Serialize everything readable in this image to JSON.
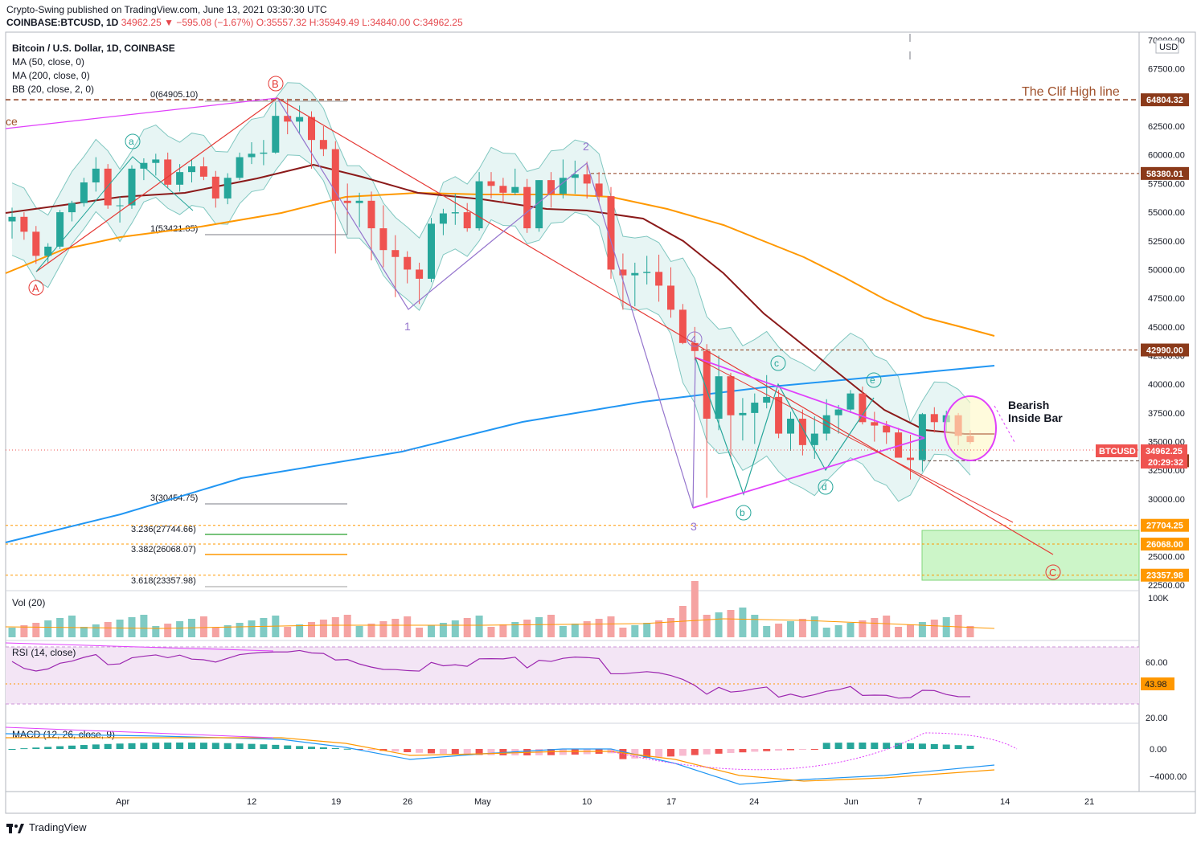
{
  "header": {
    "publish_line": "Crypto-Swing published on TradingView.com, June 13, 2021 03:30:30 UTC",
    "symbol": "COINBASE:BTCUSD, 1D",
    "last": "34962.25",
    "change": "▼ −595.08 (−1.67%)",
    "o": "O:35557.32",
    "h": "H:35949.49",
    "l": "L:34840.00",
    "c": "C:34962.25"
  },
  "legend": {
    "title": "Bitcoin / U.S. Dollar, 1D, COINBASE",
    "ma50": "MA (50, close, 0)",
    "ma200": "MA (200, close, 0)",
    "bb": "BB (20, close, 2, 0)"
  },
  "panes": {
    "vol": "Vol (20)",
    "rsi": "RSI (14, close)",
    "macd": "MACD (12, 26, close, 9)"
  },
  "annotations": {
    "clif_high": "The Clif High line",
    "bearish": "Bearish",
    "inside_bar": "Inside Bar",
    "left_cut": "ce"
  },
  "footer": {
    "brand": "TradingView"
  },
  "colors": {
    "up": "#26a69a",
    "down": "#ef5350",
    "ma50": "#8b1a1a",
    "ma200": "#ff9800",
    "ma_blue": "#2196f3",
    "bb": "#80c7c0",
    "level": "#8b3a1a",
    "fib_green": "#4caf50",
    "fib_orange": "#ff9800",
    "magenta": "#e040fb",
    "purple": "#9575cd",
    "red_line": "#e53935"
  },
  "chart_data": {
    "type": "candlestick",
    "title": "Bitcoin / U.S. Dollar, 1D, COINBASE",
    "yaxis_ticks": [
      "70000.00",
      "67500.00",
      "65000.00",
      "62500.00",
      "60000.00",
      "57500.00",
      "55000.00",
      "52500.00",
      "50000.00",
      "47500.00",
      "45000.00",
      "42500.00",
      "40000.00",
      "37500.00",
      "35000.00",
      "32500.00",
      "30000.00",
      "27500.00",
      "25000.00",
      "22500.00"
    ],
    "ylim": [
      22357.98,
      70000
    ],
    "xaxis_ticks": [
      "Apr",
      "12",
      "19",
      "26",
      "May",
      "10",
      "17",
      "24",
      "Jun",
      "7",
      "14",
      "21"
    ],
    "currency": "USD",
    "last_price_label": "BTCUSD",
    "last_price": "34962.25",
    "countdown": "20:29:32",
    "levels": [
      {
        "label": "64804.32",
        "value": 64804.32
      },
      {
        "label": "58380.01",
        "value": 58380.01
      },
      {
        "label": "42990.00",
        "value": 42990.0
      },
      {
        "label": "33333.00",
        "value": 33333.0
      },
      {
        "label": "27704.25",
        "value": 27704.25
      },
      {
        "label": "26068.00",
        "value": 26068.0
      },
      {
        "label": "23357.98",
        "value": 23357.98
      }
    ],
    "fib_labels": [
      {
        "label": "0(64905.10)",
        "value": 64905.1
      },
      {
        "label": "1(53421.85)",
        "value": 53421.85
      },
      {
        "label": "3(30454.75)",
        "value": 30454.75
      },
      {
        "label": "3.236(27744.66)",
        "value": 27744.66
      },
      {
        "label": "3.382(26068.07)",
        "value": 26068.07
      },
      {
        "label": "3.618(23357.98)",
        "value": 23357.98
      }
    ],
    "wave_labels": [
      "A",
      "B",
      "C",
      "1",
      "2",
      "3",
      "4",
      "a",
      "b",
      "c",
      "d",
      "e"
    ],
    "candles": [
      [
        54200,
        55400,
        52700,
        54600
      ],
      [
        54600,
        55000,
        52600,
        53300
      ],
      [
        53300,
        53800,
        50500,
        51200
      ],
      [
        51200,
        52300,
        50600,
        52000
      ],
      [
        52000,
        55200,
        51800,
        55000
      ],
      [
        55000,
        56000,
        54200,
        55800
      ],
      [
        55800,
        58000,
        55500,
        57600
      ],
      [
        57600,
        59800,
        56800,
        58800
      ],
      [
        58800,
        59200,
        55300,
        55600
      ],
      [
        55600,
        56400,
        54100,
        55600
      ],
      [
        55600,
        59100,
        55300,
        58800
      ],
      [
        58800,
        59700,
        57800,
        59300
      ],
      [
        59300,
        60100,
        58200,
        59600
      ],
      [
        59600,
        60200,
        57100,
        57400
      ],
      [
        57400,
        59200,
        56800,
        58500
      ],
      [
        58500,
        59600,
        57600,
        59000
      ],
      [
        59000,
        59800,
        57800,
        58100
      ],
      [
        58100,
        58600,
        55400,
        56200
      ],
      [
        56200,
        58400,
        55700,
        58000
      ],
      [
        58000,
        60200,
        57800,
        59800
      ],
      [
        59800,
        61100,
        59200,
        60100
      ],
      [
        60100,
        61300,
        59100,
        60200
      ],
      [
        60200,
        64600,
        60100,
        63400
      ],
      [
        63400,
        64900,
        61800,
        62900
      ],
      [
        62900,
        64300,
        61900,
        63300
      ],
      [
        63300,
        63800,
        58800,
        61300
      ],
      [
        61300,
        62500,
        59900,
        60500
      ],
      [
        60500,
        61200,
        51400,
        56000
      ],
      [
        56000,
        57500,
        54800,
        55800
      ],
      [
        55800,
        56700,
        53700,
        56000
      ],
      [
        56000,
        56800,
        50800,
        53600
      ],
      [
        53600,
        55600,
        50200,
        51700
      ],
      [
        51700,
        53000,
        47600,
        51100
      ],
      [
        51100,
        51600,
        48800,
        50000
      ],
      [
        50000,
        50600,
        47000,
        49200
      ],
      [
        49200,
        54500,
        48900,
        54000
      ],
      [
        54000,
        55300,
        53000,
        54900
      ],
      [
        54900,
        56600,
        53900,
        55000
      ],
      [
        55000,
        55800,
        53300,
        53600
      ],
      [
        53600,
        58500,
        53400,
        57700
      ],
      [
        57700,
        58500,
        56200,
        57300
      ],
      [
        57300,
        58000,
        55800,
        56700
      ],
      [
        56700,
        58800,
        56500,
        57200
      ],
      [
        57200,
        57900,
        53200,
        53600
      ],
      [
        53600,
        57800,
        53300,
        57800
      ],
      [
        57800,
        58500,
        55400,
        56600
      ],
      [
        56600,
        59600,
        56200,
        58000
      ],
      [
        58000,
        59500,
        56600,
        58300
      ],
      [
        58300,
        59400,
        56200,
        57500
      ],
      [
        57500,
        58500,
        55800,
        56400
      ],
      [
        56400,
        57200,
        49200,
        50000
      ],
      [
        50000,
        51400,
        46500,
        49500
      ],
      [
        49500,
        50600,
        46800,
        49700
      ],
      [
        49700,
        51200,
        48700,
        49800
      ],
      [
        49800,
        51300,
        47200,
        48600
      ],
      [
        48600,
        50200,
        45800,
        46500
      ],
      [
        46500,
        47000,
        43500,
        43600
      ],
      [
        43600,
        45000,
        42100,
        42900
      ],
      [
        42900,
        43500,
        30100,
        37000
      ],
      [
        37000,
        42500,
        36000,
        40700
      ],
      [
        40700,
        41000,
        33500,
        37300
      ],
      [
        37300,
        38800,
        35100,
        37500
      ],
      [
        37500,
        39200,
        34800,
        38400
      ],
      [
        38400,
        40800,
        37900,
        38900
      ],
      [
        38900,
        39500,
        35300,
        35700
      ],
      [
        35700,
        37600,
        34200,
        37000
      ],
      [
        37000,
        37800,
        33800,
        34700
      ],
      [
        34700,
        37200,
        33500,
        35700
      ],
      [
        35700,
        38700,
        35100,
        37300
      ],
      [
        37300,
        38200,
        35700,
        37800
      ],
      [
        37800,
        39500,
        37500,
        39200
      ],
      [
        39200,
        39800,
        36500,
        36700
      ],
      [
        36700,
        37600,
        35000,
        36400
      ],
      [
        36400,
        36800,
        34800,
        35800
      ],
      [
        35800,
        36200,
        33700,
        33600
      ],
      [
        33600,
        35600,
        31700,
        33400
      ],
      [
        33400,
        37500,
        32400,
        37400
      ],
      [
        37400,
        38000,
        35800,
        36700
      ],
      [
        36700,
        37700,
        35900,
        37300
      ],
      [
        37300,
        37500,
        34700,
        35500
      ],
      [
        35500,
        36000,
        34800,
        34962
      ]
    ]
  }
}
